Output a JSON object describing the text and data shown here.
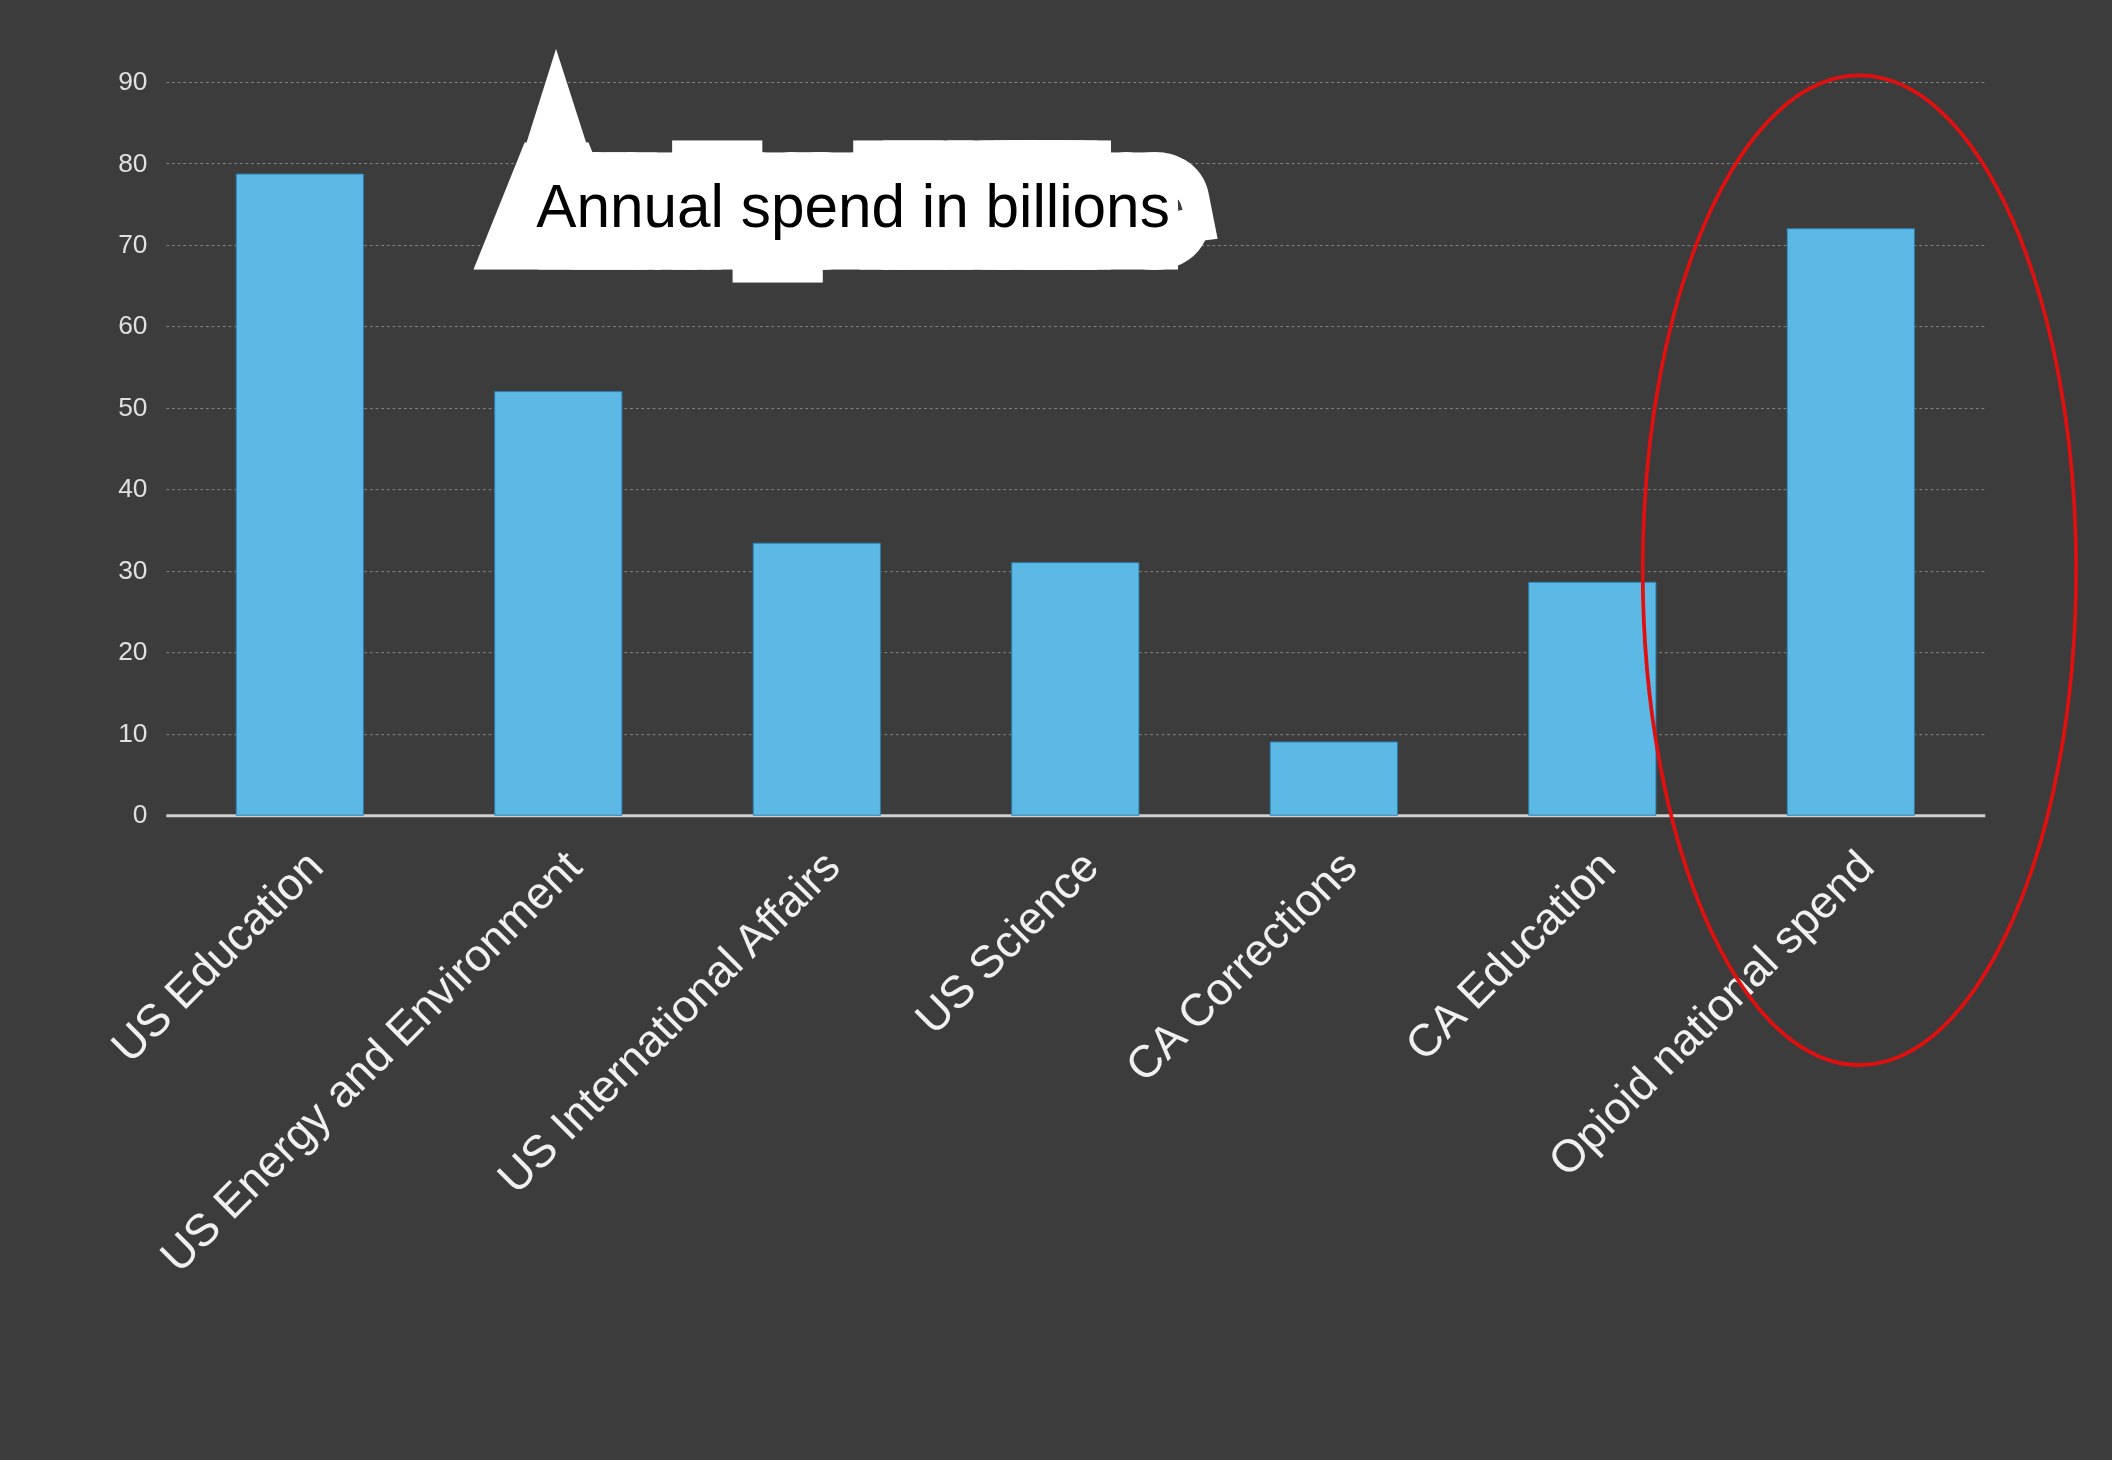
{
  "chart_data": {
    "type": "bar",
    "title": "Annual spend in billions",
    "categories": [
      "US Education",
      "US Energy and Environment",
      "US International Affairs",
      "US Science",
      "CA Corrections",
      "CA Education",
      "Opioid national spend"
    ],
    "values": [
      78.7,
      52,
      33.4,
      31,
      9,
      28.6,
      72
    ],
    "color": "#5cb9e6",
    "ylim": [
      0,
      90
    ],
    "yticks": [
      0,
      10,
      20,
      30,
      40,
      50,
      60,
      70,
      80,
      90
    ],
    "grid": "y"
  }
}
